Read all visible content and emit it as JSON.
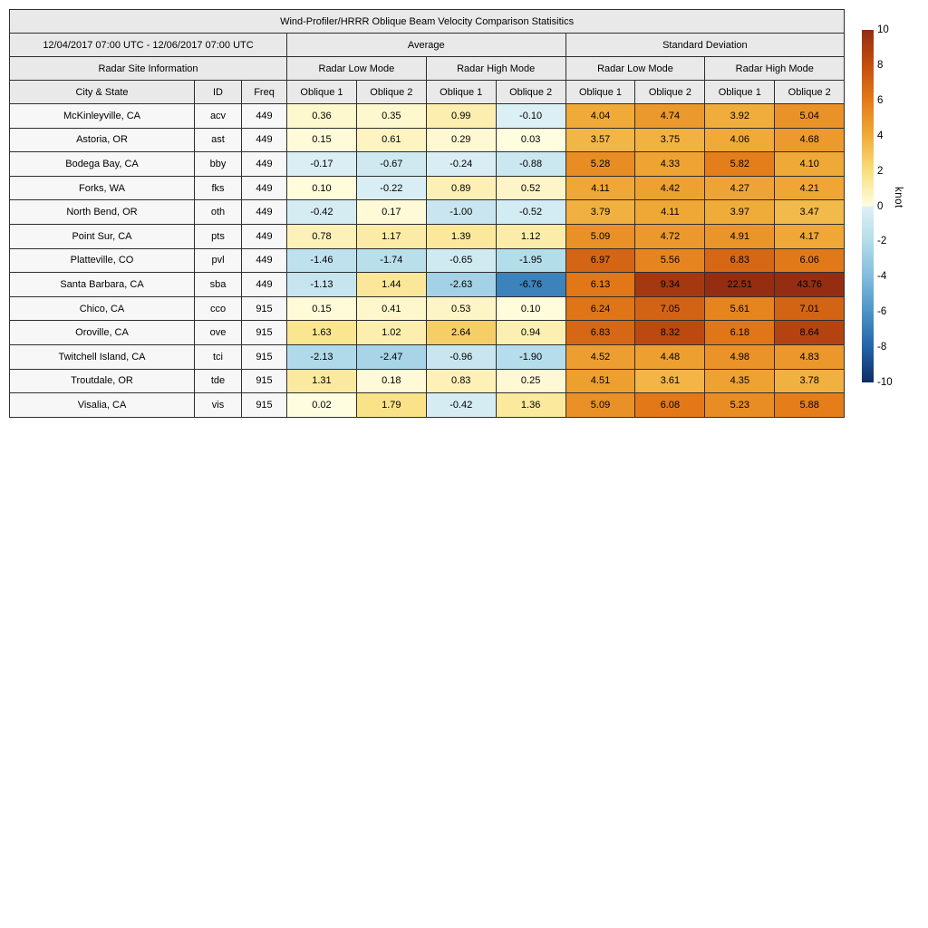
{
  "chart_data": {
    "type": "heatmap",
    "title": "Wind-Profiler/HRRR Oblique Beam Velocity Comparison Statisitics",
    "columns": {
      "date_range": "12/04/2017 07:00 UTC - 12/06/2017 07:00 UTC",
      "site_info_label": "Radar Site Information",
      "groups": [
        "Average",
        "Standard Deviation"
      ],
      "modes": [
        "Radar Low Mode",
        "Radar High Mode",
        "Radar Low Mode",
        "Radar High Mode"
      ],
      "city": "City & State",
      "id": "ID",
      "freq": "Freq",
      "obliques": [
        "Oblique 1",
        "Oblique 2",
        "Oblique 1",
        "Oblique 2",
        "Oblique 1",
        "Oblique 2",
        "Oblique 1",
        "Oblique 2"
      ]
    },
    "rows": [
      {
        "city": "McKinleyville, CA",
        "id": "acv",
        "freq": "449",
        "values": [
          0.36,
          0.35,
          0.99,
          -0.1,
          4.04,
          4.74,
          3.92,
          5.04
        ]
      },
      {
        "city": "Astoria, OR",
        "id": "ast",
        "freq": "449",
        "values": [
          0.15,
          0.61,
          0.29,
          0.03,
          3.57,
          3.75,
          4.06,
          4.68
        ]
      },
      {
        "city": "Bodega Bay, CA",
        "id": "bby",
        "freq": "449",
        "values": [
          -0.17,
          -0.67,
          -0.24,
          -0.88,
          5.28,
          4.33,
          5.82,
          4.1
        ]
      },
      {
        "city": "Forks, WA",
        "id": "fks",
        "freq": "449",
        "values": [
          0.1,
          -0.22,
          0.89,
          0.52,
          4.11,
          4.42,
          4.27,
          4.21
        ]
      },
      {
        "city": "North Bend, OR",
        "id": "oth",
        "freq": "449",
        "values": [
          -0.42,
          0.17,
          -1.0,
          -0.52,
          3.79,
          4.11,
          3.97,
          3.47
        ]
      },
      {
        "city": "Point Sur, CA",
        "id": "pts",
        "freq": "449",
        "values": [
          0.78,
          1.17,
          1.39,
          1.12,
          5.09,
          4.72,
          4.91,
          4.17
        ]
      },
      {
        "city": "Platteville, CO",
        "id": "pvl",
        "freq": "449",
        "values": [
          -1.46,
          -1.74,
          -0.65,
          -1.95,
          6.97,
          5.56,
          6.83,
          6.06
        ]
      },
      {
        "city": "Santa Barbara, CA",
        "id": "sba",
        "freq": "449",
        "values": [
          -1.13,
          1.44,
          -2.63,
          -6.76,
          6.13,
          9.34,
          22.51,
          43.76
        ]
      },
      {
        "city": "Chico, CA",
        "id": "cco",
        "freq": "915",
        "values": [
          0.15,
          0.41,
          0.53,
          0.1,
          6.24,
          7.05,
          5.61,
          7.01
        ]
      },
      {
        "city": "Oroville, CA",
        "id": "ove",
        "freq": "915",
        "values": [
          1.63,
          1.02,
          2.64,
          0.94,
          6.83,
          8.32,
          6.18,
          8.64
        ]
      },
      {
        "city": "Twitchell Island, CA",
        "id": "tci",
        "freq": "915",
        "values": [
          -2.13,
          -2.47,
          -0.96,
          -1.9,
          4.52,
          4.48,
          4.98,
          4.83
        ]
      },
      {
        "city": "Troutdale, OR",
        "id": "tde",
        "freq": "915",
        "values": [
          1.31,
          0.18,
          0.83,
          0.25,
          4.51,
          3.61,
          4.35,
          3.78
        ]
      },
      {
        "city": "Visalia, CA",
        "id": "vis",
        "freq": "915",
        "values": [
          0.02,
          1.79,
          -0.42,
          1.36,
          5.09,
          6.08,
          5.23,
          5.88
        ]
      }
    ],
    "colorbar": {
      "unit": "knot",
      "vmin": -10,
      "vmax": 10,
      "ticks": [
        10,
        8,
        6,
        4,
        2,
        0,
        -2,
        -4,
        -6,
        -8,
        -10
      ],
      "stops": [
        {
          "v": -10,
          "c": "#0d2d64"
        },
        {
          "v": -8,
          "c": "#2264a8"
        },
        {
          "v": -6,
          "c": "#4c94c6"
        },
        {
          "v": -4,
          "c": "#81bcdc"
        },
        {
          "v": -2,
          "c": "#b3dcea"
        },
        {
          "v": -0.01,
          "c": "#def0f5"
        },
        {
          "v": 0,
          "c": "#fffde0"
        },
        {
          "v": 2,
          "c": "#f9df7e"
        },
        {
          "v": 4,
          "c": "#f0ab38"
        },
        {
          "v": 6,
          "c": "#e37a18"
        },
        {
          "v": 8,
          "c": "#c44e10"
        },
        {
          "v": 10,
          "c": "#942d12"
        }
      ]
    },
    "colors": {
      "page_bg": "#ffffff",
      "header_bg": "#e9e9e9",
      "row_label_bg": "#f7f7f7",
      "border": "#2e2e2e",
      "text": "#000000"
    }
  }
}
